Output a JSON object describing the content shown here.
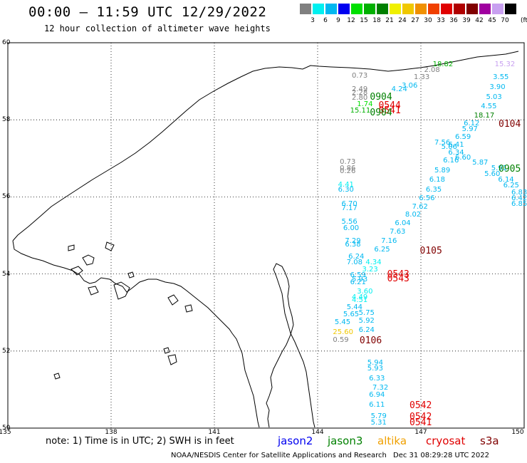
{
  "header": {
    "title": "00:00 – 11:59 UTC 12/29/2022",
    "subtitle": "12 hour collection of altimeter wave heights"
  },
  "colorbar": {
    "labels": [
      "3",
      "6",
      "9",
      "12",
      "15",
      "18",
      "21",
      "24",
      "27",
      "30",
      "33",
      "36",
      "39",
      "42",
      "45",
      "70"
    ],
    "unit": "(ft)",
    "colors": [
      "#808080",
      "#00f0f0",
      "#00b8f0",
      "#0000f0",
      "#00e000",
      "#00b000",
      "#008000",
      "#f0f000",
      "#f0c800",
      "#f09000",
      "#f04000",
      "#e00000",
      "#b00000",
      "#800000",
      "#a000a0",
      "#c8a0f0",
      "#000000"
    ]
  },
  "map": {
    "lat_labels": [
      "60",
      "58",
      "56",
      "54",
      "52",
      "50"
    ],
    "lon_labels": [
      "135",
      "138",
      "141",
      "144",
      "147",
      "150"
    ]
  },
  "chart_data": {
    "type": "scatter",
    "lon_range": [
      135,
      150
    ],
    "lat_range": [
      50,
      60
    ],
    "observations": [
      {
        "t": "0.73",
        "lon": 145.2,
        "lat": 59.13,
        "c": "#808080"
      },
      {
        "t": "2.08",
        "lon": 147.3,
        "lat": 59.28,
        "c": "#808080"
      },
      {
        "t": "1.33",
        "lon": 147.0,
        "lat": 59.1,
        "c": "#808080"
      },
      {
        "t": "18.82",
        "lon": 147.55,
        "lat": 59.43,
        "c": "#00b000"
      },
      {
        "t": "15.32",
        "lon": 149.35,
        "lat": 59.43,
        "c": "#c8a0f0"
      },
      {
        "t": "3.55",
        "lon": 149.3,
        "lat": 59.1,
        "c": "#00b8f0"
      },
      {
        "t": "3.06",
        "lon": 146.65,
        "lat": 58.88,
        "c": "#00b8f0"
      },
      {
        "t": "3.90",
        "lon": 149.2,
        "lat": 58.83,
        "c": "#00b8f0"
      },
      {
        "t": "4.24",
        "lon": 146.35,
        "lat": 58.78,
        "c": "#00b8f0"
      },
      {
        "t": "2.49",
        "lon": 145.2,
        "lat": 58.78,
        "c": "#808080"
      },
      {
        "t": "2.28",
        "lon": 145.2,
        "lat": 58.68,
        "c": "#808080"
      },
      {
        "t": "2.80",
        "lon": 145.2,
        "lat": 58.55,
        "c": "#808080"
      },
      {
        "t": "5.03",
        "lon": 149.1,
        "lat": 58.58,
        "c": "#00b8f0"
      },
      {
        "t": "1.74",
        "lon": 145.35,
        "lat": 58.4,
        "c": "#00e000"
      },
      {
        "t": "4.55",
        "lon": 148.95,
        "lat": 58.33,
        "c": "#00b8f0"
      },
      {
        "t": "15.11",
        "lon": 145.15,
        "lat": 58.23,
        "c": "#00b000"
      },
      {
        "t": "18.17",
        "lon": 148.75,
        "lat": 58.1,
        "c": "#008000"
      },
      {
        "t": "6.12",
        "lon": 148.45,
        "lat": 57.9,
        "c": "#00b8f0"
      },
      {
        "t": "5.97",
        "lon": 148.4,
        "lat": 57.75,
        "c": "#00b8f0"
      },
      {
        "t": "6.59",
        "lon": 148.2,
        "lat": 57.55,
        "c": "#00b8f0"
      },
      {
        "t": "7.56",
        "lon": 147.6,
        "lat": 57.4,
        "c": "#00b8f0"
      },
      {
        "t": "5.06",
        "lon": 147.8,
        "lat": 57.28,
        "c": "#00b8f0"
      },
      {
        "t": "6.41",
        "lon": 148.0,
        "lat": 57.33,
        "c": "#00b8f0"
      },
      {
        "t": "6.34",
        "lon": 148.0,
        "lat": 57.13,
        "c": "#00b8f0"
      },
      {
        "t": "6.60",
        "lon": 148.2,
        "lat": 57.0,
        "c": "#00b8f0"
      },
      {
        "t": "6.16",
        "lon": 147.85,
        "lat": 56.93,
        "c": "#00b8f0"
      },
      {
        "t": "5.87",
        "lon": 148.7,
        "lat": 56.88,
        "c": "#00b8f0"
      },
      {
        "t": "5.89",
        "lon": 147.6,
        "lat": 56.68,
        "c": "#00b8f0"
      },
      {
        "t": "5.91",
        "lon": 149.25,
        "lat": 56.73,
        "c": "#00b8f0"
      },
      {
        "t": "5.60",
        "lon": 149.05,
        "lat": 56.58,
        "c": "#00b8f0"
      },
      {
        "t": "6.18",
        "lon": 147.45,
        "lat": 56.43,
        "c": "#00b8f0"
      },
      {
        "t": "6.14",
        "lon": 149.45,
        "lat": 56.43,
        "c": "#00b8f0"
      },
      {
        "t": "6.25",
        "lon": 149.6,
        "lat": 56.28,
        "c": "#00b8f0"
      },
      {
        "t": "6.35",
        "lon": 147.35,
        "lat": 56.18,
        "c": "#00b8f0"
      },
      {
        "t": "6.83",
        "lon": 149.85,
        "lat": 56.1,
        "c": "#00b8f0"
      },
      {
        "t": "6.56",
        "lon": 147.15,
        "lat": 55.95,
        "c": "#00b8f0"
      },
      {
        "t": "6.42",
        "lon": 150.1,
        "lat": 55.95,
        "c": "#00b8f0"
      },
      {
        "t": "6.85",
        "lon": 150.4,
        "lat": 55.8,
        "c": "#00b8f0"
      },
      {
        "t": "7.62",
        "lon": 146.95,
        "lat": 55.73,
        "c": "#00b8f0"
      },
      {
        "t": "8.02",
        "lon": 146.75,
        "lat": 55.52,
        "c": "#00b8f0"
      },
      {
        "t": "6.04",
        "lon": 146.45,
        "lat": 55.3,
        "c": "#00b8f0"
      },
      {
        "t": "7.63",
        "lon": 146.3,
        "lat": 55.08,
        "c": "#00b8f0"
      },
      {
        "t": "7.16",
        "lon": 146.05,
        "lat": 54.85,
        "c": "#00b8f0"
      },
      {
        "t": "6.25",
        "lon": 145.85,
        "lat": 54.62,
        "c": "#00b8f0"
      },
      {
        "t": "4.34",
        "lon": 145.6,
        "lat": 54.28,
        "c": "#00f0f0"
      },
      {
        "t": "3.23",
        "lon": 145.5,
        "lat": 54.1,
        "c": "#00f0f0"
      },
      {
        "t": "0.73",
        "lon": 144.85,
        "lat": 56.9,
        "c": "#808080"
      },
      {
        "t": "0.86",
        "lon": 144.85,
        "lat": 56.73,
        "c": "#808080"
      },
      {
        "t": "0.26",
        "lon": 144.85,
        "lat": 56.66,
        "c": "#808080"
      },
      {
        "t": "4.41",
        "lon": 144.8,
        "lat": 56.3,
        "c": "#00f0f0"
      },
      {
        "t": "6.30",
        "lon": 144.8,
        "lat": 56.18,
        "c": "#00b8f0"
      },
      {
        "t": "6.70",
        "lon": 144.9,
        "lat": 55.8,
        "c": "#00b8f0"
      },
      {
        "t": "7.17",
        "lon": 144.9,
        "lat": 55.7,
        "c": "#00b8f0"
      },
      {
        "t": "5.56",
        "lon": 144.9,
        "lat": 55.35,
        "c": "#00b8f0"
      },
      {
        "t": "6.00",
        "lon": 144.95,
        "lat": 55.18,
        "c": "#00b8f0"
      },
      {
        "t": "7.29",
        "lon": 145.0,
        "lat": 54.85,
        "c": "#00b8f0"
      },
      {
        "t": "6.38",
        "lon": 145.0,
        "lat": 54.75,
        "c": "#00b8f0"
      },
      {
        "t": "6.24",
        "lon": 145.1,
        "lat": 54.43,
        "c": "#00b8f0"
      },
      {
        "t": "7.08",
        "lon": 145.05,
        "lat": 54.28,
        "c": "#00b8f0"
      },
      {
        "t": "6.59",
        "lon": 145.15,
        "lat": 53.95,
        "c": "#00b8f0"
      },
      {
        "t": "5.93",
        "lon": 145.2,
        "lat": 53.85,
        "c": "#00b8f0"
      },
      {
        "t": "6.21",
        "lon": 145.15,
        "lat": 53.78,
        "c": "#00b8f0"
      },
      {
        "t": "3.60",
        "lon": 145.35,
        "lat": 53.53,
        "c": "#00f0f0"
      },
      {
        "t": "4.49",
        "lon": 145.2,
        "lat": 53.38,
        "c": "#00f0f0"
      },
      {
        "t": "4.51",
        "lon": 145.2,
        "lat": 53.3,
        "c": "#00f0f0"
      },
      {
        "t": "5.44",
        "lon": 145.05,
        "lat": 53.13,
        "c": "#00b8f0"
      },
      {
        "t": "5.75",
        "lon": 145.4,
        "lat": 52.98,
        "c": "#00b8f0"
      },
      {
        "t": "5.65",
        "lon": 144.95,
        "lat": 52.93,
        "c": "#00b8f0"
      },
      {
        "t": "5.92",
        "lon": 145.4,
        "lat": 52.78,
        "c": "#00b8f0"
      },
      {
        "t": "5.45",
        "lon": 144.7,
        "lat": 52.73,
        "c": "#00b8f0"
      },
      {
        "t": "6.24",
        "lon": 145.4,
        "lat": 52.53,
        "c": "#00b8f0"
      },
      {
        "t": "25.60",
        "lon": 144.65,
        "lat": 52.48,
        "c": "#f0c800"
      },
      {
        "t": "0.59",
        "lon": 144.65,
        "lat": 52.28,
        "c": "#808080"
      },
      {
        "t": "5.94",
        "lon": 145.65,
        "lat": 51.68,
        "c": "#00b8f0"
      },
      {
        "t": "5.93",
        "lon": 145.65,
        "lat": 51.53,
        "c": "#00b8f0"
      },
      {
        "t": "6.33",
        "lon": 145.7,
        "lat": 51.28,
        "c": "#00b8f0"
      },
      {
        "t": "7.32",
        "lon": 145.8,
        "lat": 51.03,
        "c": "#00b8f0"
      },
      {
        "t": "6.94",
        "lon": 145.7,
        "lat": 50.85,
        "c": "#00b8f0"
      },
      {
        "t": "6.11",
        "lon": 145.7,
        "lat": 50.6,
        "c": "#00b8f0"
      },
      {
        "t": "5.79",
        "lon": 145.75,
        "lat": 50.3,
        "c": "#00b8f0"
      },
      {
        "t": "5.31",
        "lon": 145.75,
        "lat": 50.13,
        "c": "#00b8f0"
      }
    ],
    "time_labels": [
      {
        "t": "0904",
        "lon": 145.85,
        "lat": 58.6,
        "c": "#008000"
      },
      {
        "t": "0544",
        "lon": 146.1,
        "lat": 58.38,
        "c": "#e00000"
      },
      {
        "t": "0541",
        "lon": 146.1,
        "lat": 58.25,
        "c": "#e00000"
      },
      {
        "t": "0904",
        "lon": 145.85,
        "lat": 58.18,
        "c": "#008000"
      },
      {
        "t": "0104",
        "lon": 149.6,
        "lat": 57.9,
        "c": "#800000"
      },
      {
        "t": "0905",
        "lon": 150.0,
        "lat": 56.73,
        "c": "#008000"
      },
      {
        "t": "0105",
        "lon": 147.3,
        "lat": 54.6,
        "c": "#800000"
      },
      {
        "t": "0543",
        "lon": 146.35,
        "lat": 54.0,
        "c": "#e00000"
      },
      {
        "t": "0543",
        "lon": 146.35,
        "lat": 53.88,
        "c": "#e00000"
      },
      {
        "t": "0106",
        "lon": 145.55,
        "lat": 52.28,
        "c": "#800000"
      },
      {
        "t": "0542",
        "lon": 147.0,
        "lat": 50.6,
        "c": "#e00000"
      },
      {
        "t": "0542",
        "lon": 147.0,
        "lat": 50.3,
        "c": "#e00000"
      },
      {
        "t": "0541",
        "lon": 147.0,
        "lat": 50.15,
        "c": "#e00000"
      }
    ]
  },
  "footer": {
    "note": "note:  1) Time is in UTC;  2) SWH is in feet",
    "satellites": [
      {
        "name": "jason2",
        "color": "#0000f0"
      },
      {
        "name": "jason3",
        "color": "#008000"
      },
      {
        "name": "altika",
        "color": "#f0a000"
      },
      {
        "name": "cryosat",
        "color": "#e00000"
      },
      {
        "name": "s3a",
        "color": "#800000"
      }
    ],
    "credit": "NOAA/NESDIS Center for Satellite Applications and Research",
    "timestamp": "Dec 31 08:29:28 UTC 2022"
  }
}
